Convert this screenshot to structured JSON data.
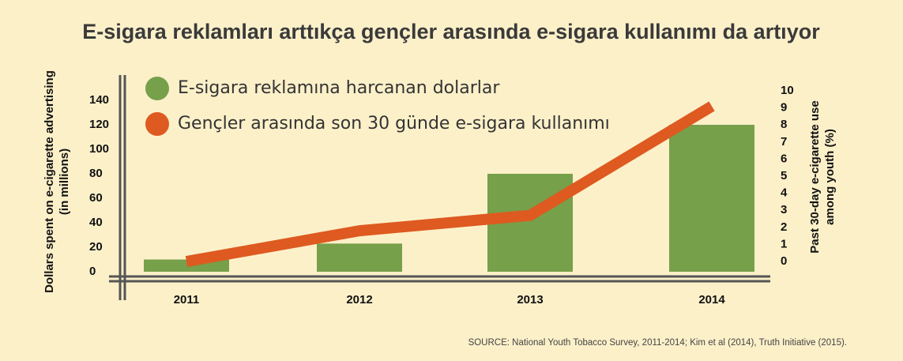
{
  "chart_data": {
    "type": "bar",
    "title": "E-sigara reklamları arttıkça gençler arasında e-sigara kullanımı da artıyor",
    "categories": [
      "2011",
      "2012",
      "2013",
      "2014"
    ],
    "series": [
      {
        "name": "E-sigara reklamına harcanan dolarlar",
        "type": "bar",
        "color": "#76a04a",
        "values": [
          10,
          23,
          80,
          120
        ]
      },
      {
        "name": "Gençler arasında son 30 günde e-sigara kullanımı",
        "type": "line",
        "axis": "y2",
        "color": "#de5a20",
        "values": [
          0,
          1.8,
          2.7,
          9.1
        ]
      }
    ],
    "ylim": [
      0,
      140
    ],
    "yticks": [
      0,
      20,
      40,
      60,
      80,
      100,
      120,
      140
    ],
    "y2lim": [
      0,
      10
    ],
    "y2ticks": [
      0,
      1,
      2,
      3,
      4,
      5,
      6,
      7,
      8,
      9,
      10
    ],
    "y_label": [
      "Dollars spent on e-cigarette advertising",
      "(in millions)"
    ],
    "y2_label": [
      "Past 30-day e-cigarette use",
      "among youth (%)"
    ],
    "source": "SOURCE: National Youth Tobacco Survey, 2011-2014; Kim et al (2014), Truth Initiative (2015)."
  }
}
